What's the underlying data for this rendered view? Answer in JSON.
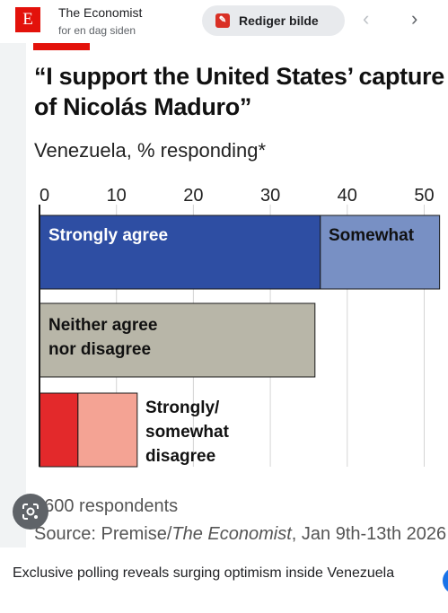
{
  "header": {
    "source_name": "The Economist",
    "source_time": "for en dag siden",
    "logo_letter": "E",
    "edit_button_label": "Rediger bilde",
    "prev_icon": "chevron-left-icon",
    "next_icon": "chevron-right-icon"
  },
  "figure": {
    "title": "“I support the United States’ capture of Nicolás Maduro”",
    "subtitle": "Venezuela, % responding*",
    "footnote": "1600 respondents",
    "source_prefix": "Source: Premise/",
    "source_italic": "The Economist",
    "source_suffix": ", Jan 9th-13th 2026"
  },
  "chart_data": {
    "type": "bar",
    "orientation": "horizontal",
    "stacked": true,
    "title": "“I support the United States’ capture of Nicolás Maduro”",
    "subtitle": "Venezuela, % responding*",
    "xlim": [
      0,
      50
    ],
    "xticks": [
      0,
      10,
      20,
      30,
      40,
      50
    ],
    "grid": true,
    "bars": [
      {
        "labels": [
          "Strongly agree",
          "Somewhat"
        ],
        "segments": [
          {
            "name": "Strongly agree",
            "value": 36.5,
            "color": "#2e4ea3"
          },
          {
            "name": "Somewhat",
            "value": 15.5,
            "color": "#7890c4"
          }
        ]
      },
      {
        "labels": [
          "Neither agree nor disagree"
        ],
        "segments": [
          {
            "name": "Neither agree nor disagree",
            "value": 35.8,
            "color": "#b8b6a8"
          }
        ]
      },
      {
        "labels": [
          "Strongly/ somewhat disagree"
        ],
        "segments": [
          {
            "name": "Strongly disagree",
            "value": 5,
            "color": "#e3292b"
          },
          {
            "name": "Somewhat disagree",
            "value": 7.7,
            "color": "#f4a394"
          }
        ]
      }
    ],
    "annotations": [
      {
        "text_lines": [
          "Strongly agree"
        ],
        "color": "#ffffff"
      },
      {
        "text_lines": [
          "Somewhat"
        ],
        "color": "#111111"
      },
      {
        "text_lines": [
          "Neither agree",
          "nor disagree"
        ],
        "color": "#111111"
      },
      {
        "text_lines": [
          "Strongly/",
          "somewhat",
          "disagree"
        ],
        "color": "#111111"
      }
    ]
  },
  "caption": "Exclusive polling reveals surging optimism inside Venezuela",
  "colors": {
    "economist_red": "#e3120b",
    "google_blue": "#1a73e8"
  }
}
